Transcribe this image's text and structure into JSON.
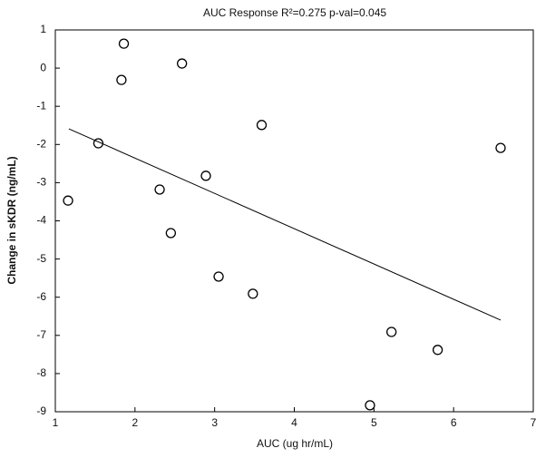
{
  "chart_data": {
    "type": "scatter",
    "title": "AUC Response  R²=0.275  p-val=0.045",
    "x_label": "AUC (ug hr/mL)",
    "y_label": "Change in sKDR (ng/mL)",
    "x": [
      1.86,
      1.83,
      2.59,
      1.54,
      3.59,
      6.59,
      1.16,
      2.31,
      2.89,
      2.45,
      3.05,
      3.48,
      5.22,
      5.8,
      4.95
    ],
    "values": [
      0.64,
      -0.31,
      0.12,
      -1.97,
      -1.49,
      -2.09,
      -3.47,
      -3.18,
      -2.82,
      -4.32,
      -5.46,
      -5.91,
      -6.91,
      -7.38,
      -8.83
    ],
    "fit_line": {
      "x": [
        1.17,
        6.59
      ],
      "values": [
        -1.59,
        -6.6
      ]
    },
    "color": "#000000",
    "xlim": [
      1,
      7
    ],
    "xticks": [
      1,
      2,
      3,
      4,
      5,
      6,
      7
    ],
    "ylim": [
      -9,
      1
    ],
    "yticks": [
      -9,
      -8,
      -7,
      -6,
      -5,
      -4,
      -3,
      -2,
      -1,
      0,
      1
    ]
  }
}
